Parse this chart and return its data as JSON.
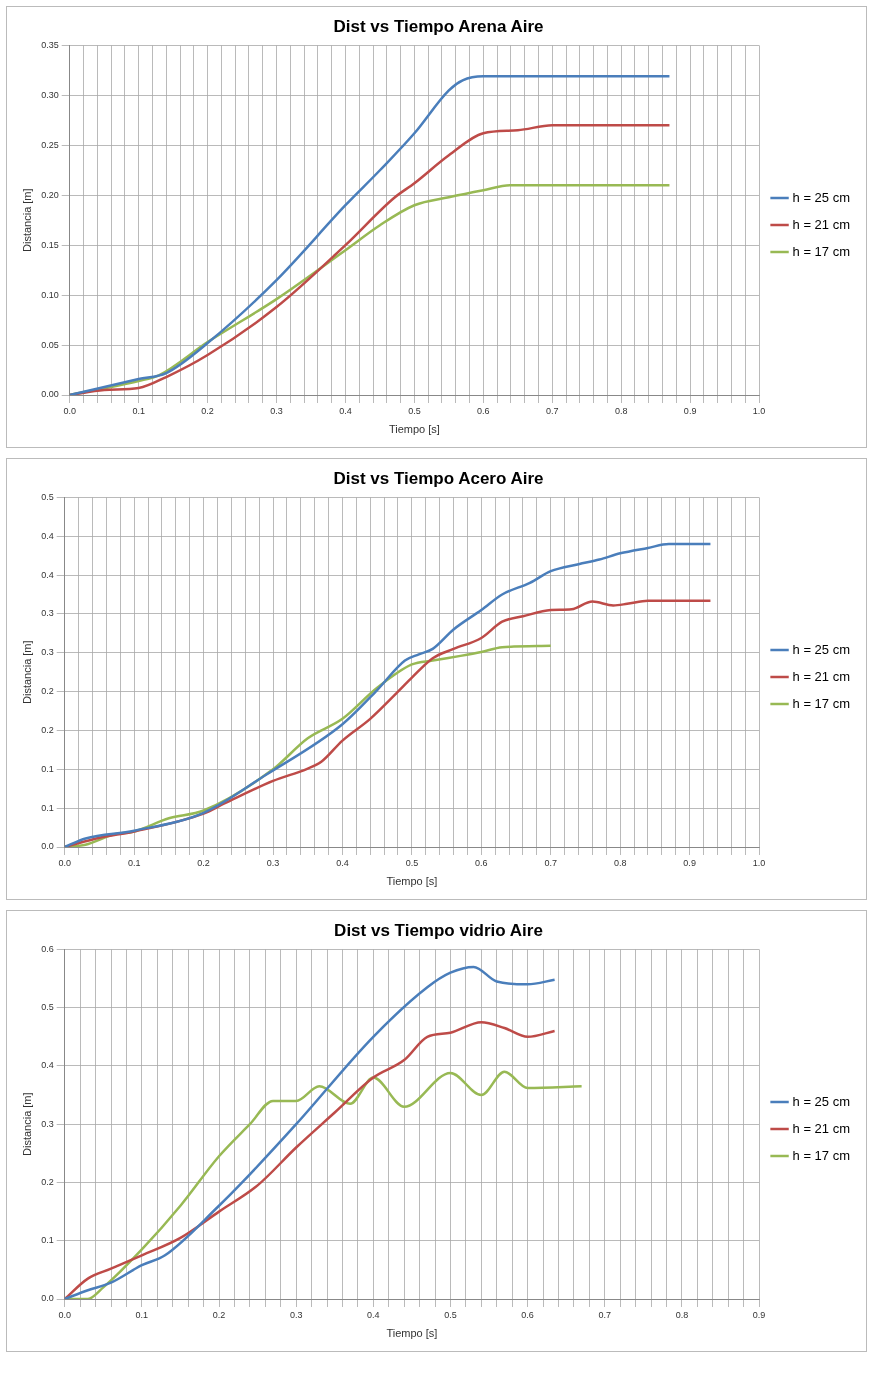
{
  "chart_data": [
    {
      "type": "line",
      "title": "Dist vs Tiempo Arena Aire",
      "xlabel": "Tiempo [s]",
      "ylabel": "Distancia [m]",
      "legend": "right",
      "grid": true,
      "marker": "none",
      "line_style": "solid",
      "xlim": [
        0,
        1.0
      ],
      "ylim": [
        0,
        0.35
      ],
      "xticks": [
        {
          "value": 0,
          "label": "0.0"
        },
        {
          "value": 0.02,
          "label": null
        },
        {
          "value": 0.04,
          "label": null
        },
        {
          "value": 0.06,
          "label": null
        },
        {
          "value": 0.08,
          "label": null
        },
        {
          "value": 0.1,
          "label": "0.1"
        },
        {
          "value": 0.12,
          "label": null
        },
        {
          "value": 0.14,
          "label": null
        },
        {
          "value": 0.16,
          "label": null
        },
        {
          "value": 0.18,
          "label": null
        },
        {
          "value": 0.2,
          "label": "0.2"
        },
        {
          "value": 0.22,
          "label": null
        },
        {
          "value": 0.24,
          "label": null
        },
        {
          "value": 0.26,
          "label": null
        },
        {
          "value": 0.28,
          "label": null
        },
        {
          "value": 0.3,
          "label": "0.3"
        },
        {
          "value": 0.32,
          "label": null
        },
        {
          "value": 0.34,
          "label": null
        },
        {
          "value": 0.36,
          "label": null
        },
        {
          "value": 0.38,
          "label": null
        },
        {
          "value": 0.4,
          "label": "0.4"
        },
        {
          "value": 0.42,
          "label": null
        },
        {
          "value": 0.44,
          "label": null
        },
        {
          "value": 0.46,
          "label": null
        },
        {
          "value": 0.48,
          "label": null
        },
        {
          "value": 0.5,
          "label": "0.5"
        },
        {
          "value": 0.52,
          "label": null
        },
        {
          "value": 0.54,
          "label": null
        },
        {
          "value": 0.56,
          "label": null
        },
        {
          "value": 0.58,
          "label": null
        },
        {
          "value": 0.6,
          "label": "0.6"
        },
        {
          "value": 0.62,
          "label": null
        },
        {
          "value": 0.64,
          "label": null
        },
        {
          "value": 0.66,
          "label": null
        },
        {
          "value": 0.68,
          "label": null
        },
        {
          "value": 0.7,
          "label": "0.7"
        },
        {
          "value": 0.72,
          "label": null
        },
        {
          "value": 0.74,
          "label": null
        },
        {
          "value": 0.76,
          "label": null
        },
        {
          "value": 0.78,
          "label": null
        },
        {
          "value": 0.8,
          "label": "0.8"
        },
        {
          "value": 0.82,
          "label": null
        },
        {
          "value": 0.84,
          "label": null
        },
        {
          "value": 0.86,
          "label": null
        },
        {
          "value": 0.88,
          "label": null
        },
        {
          "value": 0.9,
          "label": "0.9"
        },
        {
          "value": 0.92,
          "label": null
        },
        {
          "value": 0.94,
          "label": null
        },
        {
          "value": 0.96,
          "label": null
        },
        {
          "value": 0.98,
          "label": null
        },
        {
          "value": 1.0,
          "label": "1.0"
        }
      ],
      "yticks": [
        {
          "value": 0,
          "label": "0.00"
        },
        {
          "value": 0.05,
          "label": "0.05"
        },
        {
          "value": 0.1,
          "label": "0.10"
        },
        {
          "value": 0.15,
          "label": "0.15"
        },
        {
          "value": 0.2,
          "label": "0.20"
        },
        {
          "value": 0.25,
          "label": "0.25"
        },
        {
          "value": 0.3,
          "label": "0.30"
        },
        {
          "value": 0.35,
          "label": "0.35"
        }
      ],
      "series": [
        {
          "name": "h = 25 cm",
          "color": "#4a7ebb",
          "x": [
            0,
            0.1,
            0.14,
            0.2,
            0.3,
            0.4,
            0.45,
            0.5,
            0.55,
            0.57,
            0.6,
            0.7,
            0.87
          ],
          "values": [
            0,
            0.016,
            0.022,
            0.052,
            0.115,
            0.19,
            0.225,
            0.262,
            0.305,
            0.315,
            0.319,
            0.319,
            0.319
          ]
        },
        {
          "name": "h = 21 cm",
          "color": "#be4b48",
          "x": [
            0,
            0.05,
            0.1,
            0.14,
            0.2,
            0.3,
            0.4,
            0.47,
            0.5,
            0.55,
            0.6,
            0.65,
            0.7,
            0.87
          ],
          "values": [
            0,
            0.005,
            0.007,
            0.018,
            0.04,
            0.088,
            0.15,
            0.197,
            0.212,
            0.24,
            0.262,
            0.265,
            0.27,
            0.27
          ]
        },
        {
          "name": "h = 17 cm",
          "color": "#98b954",
          "x": [
            0,
            0.1,
            0.13,
            0.2,
            0.3,
            0.4,
            0.45,
            0.5,
            0.55,
            0.6,
            0.64,
            0.87
          ],
          "values": [
            0,
            0.014,
            0.02,
            0.053,
            0.096,
            0.145,
            0.17,
            0.19,
            0.198,
            0.205,
            0.21,
            0.21
          ]
        }
      ]
    },
    {
      "type": "line",
      "title": "Dist vs Tiempo Acero Aire",
      "xlabel": "Tiempo [s]",
      "ylabel": "Distancia [m]",
      "legend": "right",
      "grid": true,
      "marker": "none",
      "line_style": "solid",
      "xlim": [
        0,
        1.0
      ],
      "ylim": [
        0,
        0.45
      ],
      "xticks": [
        {
          "value": 0,
          "label": "0.0"
        },
        {
          "value": 0.02,
          "label": null
        },
        {
          "value": 0.04,
          "label": null
        },
        {
          "value": 0.06,
          "label": null
        },
        {
          "value": 0.08,
          "label": null
        },
        {
          "value": 0.1,
          "label": "0.1"
        },
        {
          "value": 0.12,
          "label": null
        },
        {
          "value": 0.14,
          "label": null
        },
        {
          "value": 0.16,
          "label": null
        },
        {
          "value": 0.18,
          "label": null
        },
        {
          "value": 0.2,
          "label": "0.2"
        },
        {
          "value": 0.22,
          "label": null
        },
        {
          "value": 0.24,
          "label": null
        },
        {
          "value": 0.26,
          "label": null
        },
        {
          "value": 0.28,
          "label": null
        },
        {
          "value": 0.3,
          "label": "0.3"
        },
        {
          "value": 0.32,
          "label": null
        },
        {
          "value": 0.34,
          "label": null
        },
        {
          "value": 0.36,
          "label": null
        },
        {
          "value": 0.38,
          "label": null
        },
        {
          "value": 0.4,
          "label": "0.4"
        },
        {
          "value": 0.42,
          "label": null
        },
        {
          "value": 0.44,
          "label": null
        },
        {
          "value": 0.46,
          "label": null
        },
        {
          "value": 0.48,
          "label": null
        },
        {
          "value": 0.5,
          "label": "0.5"
        },
        {
          "value": 0.52,
          "label": null
        },
        {
          "value": 0.54,
          "label": null
        },
        {
          "value": 0.56,
          "label": null
        },
        {
          "value": 0.58,
          "label": null
        },
        {
          "value": 0.6,
          "label": "0.6"
        },
        {
          "value": 0.62,
          "label": null
        },
        {
          "value": 0.64,
          "label": null
        },
        {
          "value": 0.66,
          "label": null
        },
        {
          "value": 0.68,
          "label": null
        },
        {
          "value": 0.7,
          "label": "0.7"
        },
        {
          "value": 0.72,
          "label": null
        },
        {
          "value": 0.74,
          "label": null
        },
        {
          "value": 0.76,
          "label": null
        },
        {
          "value": 0.78,
          "label": null
        },
        {
          "value": 0.8,
          "label": "0.8"
        },
        {
          "value": 0.82,
          "label": null
        },
        {
          "value": 0.84,
          "label": null
        },
        {
          "value": 0.86,
          "label": null
        },
        {
          "value": 0.88,
          "label": null
        },
        {
          "value": 0.9,
          "label": "0.9"
        },
        {
          "value": 0.92,
          "label": null
        },
        {
          "value": 0.94,
          "label": null
        },
        {
          "value": 0.96,
          "label": null
        },
        {
          "value": 0.98,
          "label": null
        },
        {
          "value": 1.0,
          "label": "1.0"
        }
      ],
      "yticks": [
        {
          "value": 0,
          "label": "0.0"
        },
        {
          "value": 0.05,
          "label": "0.1"
        },
        {
          "value": 0.1,
          "label": "0.1"
        },
        {
          "value": 0.15,
          "label": "0.2"
        },
        {
          "value": 0.2,
          "label": "0.2"
        },
        {
          "value": 0.25,
          "label": "0.3"
        },
        {
          "value": 0.3,
          "label": "0.3"
        },
        {
          "value": 0.35,
          "label": "0.4"
        },
        {
          "value": 0.4,
          "label": "0.4"
        },
        {
          "value": 0.45,
          "label": "0.5"
        }
      ],
      "series": [
        {
          "name": "h = 25 cm",
          "color": "#4a7ebb",
          "x": [
            0,
            0.03,
            0.1,
            0.2,
            0.29,
            0.4,
            0.45,
            0.49,
            0.51,
            0.53,
            0.56,
            0.6,
            0.63,
            0.67,
            0.7,
            0.74,
            0.77,
            0.8,
            0.84,
            0.87,
            0.93
          ],
          "values": [
            0,
            0.011,
            0.021,
            0.044,
            0.093,
            0.158,
            0.202,
            0.24,
            0.248,
            0.255,
            0.28,
            0.305,
            0.325,
            0.34,
            0.355,
            0.364,
            0.37,
            0.378,
            0.385,
            0.39,
            0.39
          ]
        },
        {
          "name": "h = 21 cm",
          "color": "#be4b48",
          "x": [
            0,
            0.05,
            0.1,
            0.2,
            0.23,
            0.3,
            0.35,
            0.37,
            0.4,
            0.44,
            0.48,
            0.5,
            0.53,
            0.56,
            0.6,
            0.63,
            0.66,
            0.7,
            0.73,
            0.76,
            0.79,
            0.81,
            0.84,
            0.93
          ],
          "values": [
            0,
            0.012,
            0.02,
            0.043,
            0.056,
            0.085,
            0.101,
            0.11,
            0.137,
            0.165,
            0.2,
            0.218,
            0.243,
            0.255,
            0.269,
            0.29,
            0.297,
            0.305,
            0.306,
            0.316,
            0.311,
            0.313,
            0.317,
            0.317
          ]
        },
        {
          "name": "h = 17 cm",
          "color": "#98b954",
          "x": [
            0,
            0.03,
            0.07,
            0.1,
            0.15,
            0.2,
            0.3,
            0.35,
            0.4,
            0.45,
            0.5,
            0.53,
            0.57,
            0.6,
            0.63,
            0.7
          ],
          "values": [
            0,
            0.003,
            0.016,
            0.02,
            0.037,
            0.047,
            0.1,
            0.14,
            0.165,
            0.205,
            0.235,
            0.24,
            0.246,
            0.251,
            0.257,
            0.259
          ]
        }
      ]
    },
    {
      "type": "line",
      "title": "Dist vs Tiempo vidrio Aire",
      "xlabel": "Tiempo [s]",
      "ylabel": "Distancia [m]",
      "legend": "right",
      "grid": true,
      "marker": "none",
      "line_style": "solid",
      "xlim": [
        0,
        0.9
      ],
      "ylim": [
        0,
        0.6
      ],
      "xticks": [
        {
          "value": 0,
          "label": "0.0"
        },
        {
          "value": 0.02,
          "label": null
        },
        {
          "value": 0.04,
          "label": null
        },
        {
          "value": 0.06,
          "label": null
        },
        {
          "value": 0.08,
          "label": null
        },
        {
          "value": 0.1,
          "label": "0.1"
        },
        {
          "value": 0.12,
          "label": null
        },
        {
          "value": 0.14,
          "label": null
        },
        {
          "value": 0.16,
          "label": null
        },
        {
          "value": 0.18,
          "label": null
        },
        {
          "value": 0.2,
          "label": "0.2"
        },
        {
          "value": 0.22,
          "label": null
        },
        {
          "value": 0.24,
          "label": null
        },
        {
          "value": 0.26,
          "label": null
        },
        {
          "value": 0.28,
          "label": null
        },
        {
          "value": 0.3,
          "label": "0.3"
        },
        {
          "value": 0.32,
          "label": null
        },
        {
          "value": 0.34,
          "label": null
        },
        {
          "value": 0.36,
          "label": null
        },
        {
          "value": 0.38,
          "label": null
        },
        {
          "value": 0.4,
          "label": "0.4"
        },
        {
          "value": 0.42,
          "label": null
        },
        {
          "value": 0.44,
          "label": null
        },
        {
          "value": 0.46,
          "label": null
        },
        {
          "value": 0.48,
          "label": null
        },
        {
          "value": 0.5,
          "label": "0.5"
        },
        {
          "value": 0.52,
          "label": null
        },
        {
          "value": 0.54,
          "label": null
        },
        {
          "value": 0.56,
          "label": null
        },
        {
          "value": 0.58,
          "label": null
        },
        {
          "value": 0.6,
          "label": "0.6"
        },
        {
          "value": 0.62,
          "label": null
        },
        {
          "value": 0.64,
          "label": null
        },
        {
          "value": 0.66,
          "label": null
        },
        {
          "value": 0.68,
          "label": null
        },
        {
          "value": 0.7,
          "label": "0.7"
        },
        {
          "value": 0.72,
          "label": null
        },
        {
          "value": 0.74,
          "label": null
        },
        {
          "value": 0.76,
          "label": null
        },
        {
          "value": 0.78,
          "label": null
        },
        {
          "value": 0.8,
          "label": "0.8"
        },
        {
          "value": 0.82,
          "label": null
        },
        {
          "value": 0.84,
          "label": null
        },
        {
          "value": 0.86,
          "label": null
        },
        {
          "value": 0.88,
          "label": null
        },
        {
          "value": 0.9,
          "label": "0.9"
        }
      ],
      "yticks": [
        {
          "value": 0,
          "label": "0.0"
        },
        {
          "value": 0.1,
          "label": "0.1"
        },
        {
          "value": 0.2,
          "label": "0.2"
        },
        {
          "value": 0.3,
          "label": "0.3"
        },
        {
          "value": 0.4,
          "label": "0.4"
        },
        {
          "value": 0.5,
          "label": "0.5"
        },
        {
          "value": 0.6,
          "label": "0.6"
        }
      ],
      "series": [
        {
          "name": "h = 25 cm",
          "color": "#4a7ebb",
          "x": [
            0,
            0.03,
            0.06,
            0.1,
            0.13,
            0.2,
            0.23,
            0.3,
            0.4,
            0.47,
            0.5,
            0.53,
            0.56,
            0.6,
            0.635
          ],
          "values": [
            0,
            0.015,
            0.028,
            0.058,
            0.075,
            0.16,
            0.2,
            0.3,
            0.45,
            0.535,
            0.56,
            0.57,
            0.545,
            0.54,
            0.548
          ]
        },
        {
          "name": "h = 21 cm",
          "color": "#be4b48",
          "x": [
            0,
            0.03,
            0.06,
            0.1,
            0.15,
            0.2,
            0.25,
            0.3,
            0.35,
            0.4,
            0.44,
            0.47,
            0.5,
            0.54,
            0.57,
            0.6,
            0.635
          ],
          "values": [
            0,
            0.035,
            0.052,
            0.075,
            0.105,
            0.15,
            0.195,
            0.26,
            0.32,
            0.38,
            0.41,
            0.45,
            0.457,
            0.475,
            0.465,
            0.45,
            0.46
          ]
        },
        {
          "name": "h = 17 cm",
          "color": "#98b954",
          "x": [
            0,
            0.03,
            0.05,
            0.1,
            0.15,
            0.2,
            0.24,
            0.27,
            0.3,
            0.33,
            0.37,
            0.4,
            0.44,
            0.5,
            0.54,
            0.57,
            0.6,
            0.67
          ],
          "values": [
            0,
            0,
            0.02,
            0.085,
            0.16,
            0.245,
            0.3,
            0.34,
            0.34,
            0.365,
            0.335,
            0.38,
            0.33,
            0.388,
            0.35,
            0.39,
            0.362,
            0.365
          ]
        }
      ]
    }
  ]
}
